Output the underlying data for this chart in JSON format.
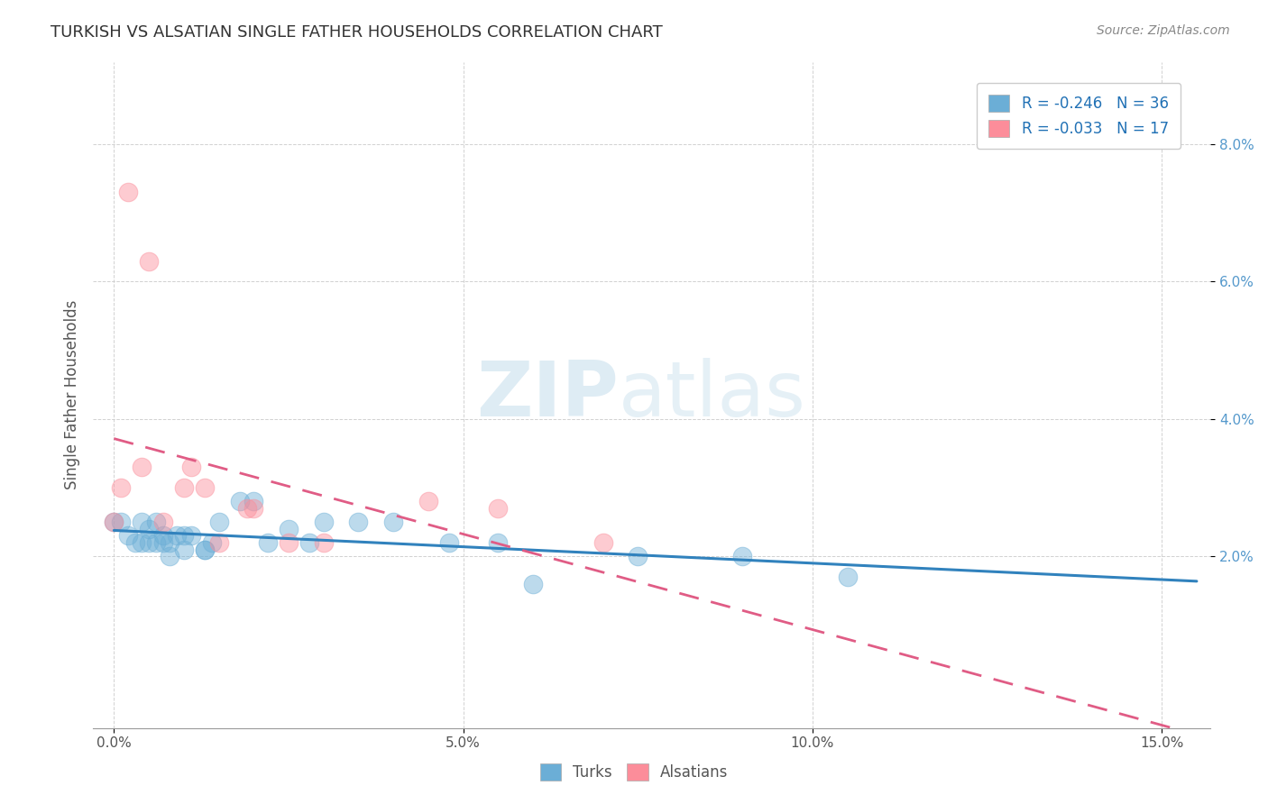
{
  "title": "TURKISH VS ALSATIAN SINGLE FATHER HOUSEHOLDS CORRELATION CHART",
  "source": "Source: ZipAtlas.com",
  "xlabel_ticks": [
    "0.0%",
    "5.0%",
    "10.0%",
    "15.0%"
  ],
  "ylabel_ticks_right": [
    "8.0%",
    "6.0%",
    "4.0%",
    "2.0%"
  ],
  "xlim": [
    -0.003,
    0.157
  ],
  "ylim": [
    -0.005,
    0.092
  ],
  "xlabel_vals": [
    0.0,
    0.05,
    0.1,
    0.15
  ],
  "ylabel_vals": [
    0.02,
    0.04,
    0.06,
    0.08
  ],
  "legend_turkish": "R = -0.246   N = 36",
  "legend_alsatian": "R = -0.033   N = 17",
  "color_turkish": "#6baed6",
  "color_alsatian": "#fc8d9a",
  "turks_x": [
    0.0,
    0.001,
    0.002,
    0.003,
    0.004,
    0.004,
    0.005,
    0.005,
    0.006,
    0.006,
    0.007,
    0.007,
    0.008,
    0.008,
    0.009,
    0.01,
    0.01,
    0.011,
    0.013,
    0.013,
    0.014,
    0.015,
    0.018,
    0.02,
    0.022,
    0.025,
    0.028,
    0.03,
    0.035,
    0.04,
    0.048,
    0.055,
    0.06,
    0.075,
    0.09,
    0.105
  ],
  "turks_y": [
    0.025,
    0.025,
    0.023,
    0.022,
    0.022,
    0.025,
    0.022,
    0.024,
    0.022,
    0.025,
    0.022,
    0.023,
    0.02,
    0.022,
    0.023,
    0.021,
    0.023,
    0.023,
    0.021,
    0.021,
    0.022,
    0.025,
    0.028,
    0.028,
    0.022,
    0.024,
    0.022,
    0.025,
    0.025,
    0.025,
    0.022,
    0.022,
    0.016,
    0.02,
    0.02,
    0.017
  ],
  "alsatians_x": [
    0.0,
    0.001,
    0.002,
    0.004,
    0.005,
    0.007,
    0.01,
    0.011,
    0.013,
    0.015,
    0.019,
    0.02,
    0.025,
    0.03,
    0.045,
    0.055,
    0.07
  ],
  "alsatians_y": [
    0.025,
    0.03,
    0.073,
    0.033,
    0.063,
    0.025,
    0.03,
    0.033,
    0.03,
    0.022,
    0.027,
    0.027,
    0.022,
    0.022,
    0.028,
    0.027,
    0.022
  ],
  "watermark_zip": "ZIP",
  "watermark_atlas": "atlas",
  "background_color": "#ffffff",
  "grid_color": "#cccccc",
  "trendline_color_turks": "#3182bd",
  "trendline_color_alsatians": "#e05c85"
}
